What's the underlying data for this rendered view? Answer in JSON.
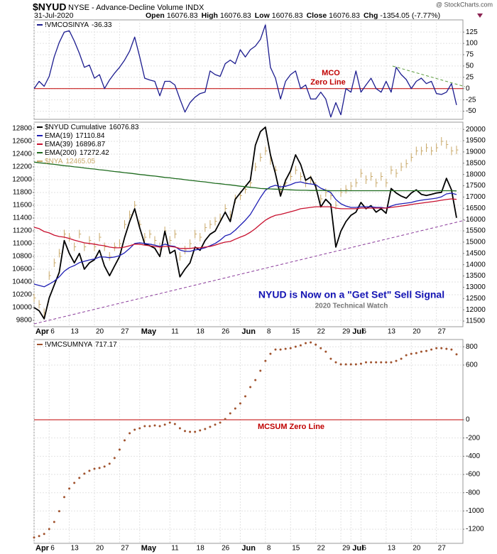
{
  "header": {
    "symbol": "$NYUD",
    "description": "NYSE - Advance-Decline Volume INDX",
    "source": "@ StockCharts.com",
    "date": "31-Jul-2020",
    "quote": [
      {
        "label": "Open",
        "value": 16076.83
      },
      {
        "label": "High",
        "value": 16076.83
      },
      {
        "label": "Low",
        "value": 16076.83
      },
      {
        "label": "Close",
        "value": 16076.83
      },
      {
        "label": "Chg",
        "value": -1354.05,
        "change_pct": "(-7.77%)"
      }
    ]
  },
  "chart_data": [
    {
      "type": "line",
      "yaxis": "right",
      "grid": true,
      "zero_line": "#c00000",
      "ylim": [
        -68,
        152
      ],
      "yticks": [
        125,
        100,
        75,
        50,
        25,
        0,
        -25,
        -50
      ],
      "annotations": [
        "MCO",
        "Zero Line"
      ],
      "series": [
        {
          "name": "!VMCOSINYA",
          "color": "#1c1c8f",
          "style": "line",
          "values": [
            0,
            16,
            5,
            27,
            70,
            102,
            125,
            128,
            105,
            78,
            47,
            52,
            23,
            31,
            0,
            19,
            34,
            47,
            63,
            83,
            114,
            70,
            23,
            19,
            16,
            -16,
            16,
            16,
            8,
            -23,
            -52,
            -31,
            -19,
            -11,
            -8,
            39,
            31,
            27,
            55,
            63,
            55,
            86,
            70,
            86,
            94,
            109,
            141,
            47,
            23,
            -23,
            16,
            31,
            39,
            0,
            8,
            -23,
            -23,
            -8,
            -23,
            -63,
            -31,
            -58,
            0,
            -8,
            39,
            -8,
            8,
            23,
            0,
            -8,
            16,
            -8,
            47,
            31,
            20,
            0,
            16,
            23,
            11,
            16,
            -11,
            -13,
            -8,
            11,
            -36.33
          ]
        }
      ]
    },
    {
      "type": "line",
      "yaxis": "left",
      "grid": true,
      "ylim": [
        9700,
        12900
      ],
      "yticks": [
        12800,
        12600,
        12400,
        12200,
        12000,
        11800,
        11600,
        11400,
        11200,
        11000,
        10800,
        10600,
        10400,
        10200,
        10000,
        9800
      ],
      "y2lim": [
        11250,
        20320
      ],
      "y2ticks": [
        20000,
        19500,
        19000,
        18500,
        18000,
        17500,
        17000,
        16500,
        16000,
        15500,
        15000,
        14500,
        14000,
        13500,
        13000,
        12500,
        12000,
        11500
      ],
      "annotations": [
        "NYUD is Now on a \"Get Set\" Sell Signal",
        "2020 Technical Watch"
      ],
      "categories": [
        "Apr",
        null,
        null,
        "6",
        null,
        null,
        null,
        "13",
        null,
        null,
        null,
        null,
        "20",
        null,
        null,
        null,
        null,
        "27",
        null,
        null,
        null,
        "May",
        null,
        null,
        null,
        null,
        null,
        "11",
        null,
        null,
        null,
        null,
        "18",
        null,
        null,
        null,
        null,
        "26",
        null,
        null,
        null,
        "Jun",
        null,
        null,
        null,
        null,
        "8",
        null,
        null,
        null,
        null,
        "15",
        null,
        null,
        null,
        null,
        "22",
        null,
        null,
        null,
        null,
        "29",
        null,
        "Jul",
        null,
        "6",
        null,
        null,
        null,
        null,
        "13",
        null,
        null,
        null,
        null,
        "20",
        null,
        null,
        null,
        null,
        "27",
        null,
        null,
        null,
        null
      ],
      "series": [
        {
          "name": "$NYUD Cumulative",
          "color": "#000000",
          "style": "line",
          "axis": "y2",
          "values": [
            12100,
            11960,
            11600,
            12530,
            13090,
            13660,
            15070,
            14500,
            14080,
            14500,
            13800,
            14080,
            14220,
            14640,
            13940,
            13510,
            13940,
            14360,
            15210,
            15910,
            16480,
            15630,
            14920,
            14840,
            14730,
            14360,
            15490,
            14500,
            14640,
            13460,
            13800,
            14080,
            14780,
            14640,
            15070,
            15350,
            15490,
            15910,
            16330,
            15910,
            16900,
            17180,
            17460,
            17740,
            19300,
            19900,
            20100,
            18870,
            18030,
            17040,
            17740,
            18170,
            18870,
            18450,
            17740,
            17890,
            17460,
            16560,
            16900,
            16670,
            14780,
            15490,
            15910,
            16190,
            16330,
            16760,
            16480,
            16620,
            16330,
            16480,
            16280,
            17380,
            17180,
            17040,
            16950,
            17180,
            17320,
            17120,
            17070,
            17120,
            17180,
            17210,
            17830,
            17320,
            16076.83
          ]
        },
        {
          "name": "EMA(19)",
          "color": "#1f1fb4",
          "style": "line",
          "axis": "y2",
          "values": [
            13140,
            13080,
            13020,
            13140,
            13270,
            13460,
            13710,
            13870,
            13960,
            14090,
            14150,
            14210,
            14250,
            14340,
            14340,
            14310,
            14340,
            14400,
            14530,
            14720,
            14940,
            14970,
            14940,
            14910,
            14870,
            14810,
            14910,
            14840,
            14810,
            14650,
            14590,
            14590,
            14650,
            14690,
            14750,
            14840,
            14940,
            15090,
            15280,
            15350,
            15530,
            15750,
            15970,
            16230,
            16600,
            16980,
            17300,
            17450,
            17520,
            17450,
            17480,
            17550,
            17640,
            17670,
            17610,
            17580,
            17550,
            17390,
            17300,
            17200,
            16890,
            16700,
            16600,
            16540,
            16540,
            16570,
            16570,
            16570,
            16540,
            16540,
            16510,
            16600,
            16670,
            16700,
            16730,
            16760,
            16820,
            16860,
            16890,
            16920,
            16950,
            17010,
            17140,
            17170,
            17110.84
          ]
        },
        {
          "name": "EMA(39)",
          "color": "#c8102e",
          "style": "line",
          "axis": "y2",
          "values": [
            15660,
            15600,
            15470,
            15410,
            15310,
            15250,
            15220,
            15160,
            15090,
            15030,
            14970,
            14940,
            14910,
            14870,
            14840,
            14780,
            14750,
            14750,
            14780,
            14840,
            14910,
            14910,
            14870,
            14840,
            14810,
            14780,
            14810,
            14810,
            14780,
            14720,
            14720,
            14720,
            14750,
            14750,
            14780,
            14810,
            14870,
            14940,
            15000,
            15030,
            15130,
            15220,
            15310,
            15440,
            15600,
            15790,
            15970,
            16100,
            16190,
            16230,
            16290,
            16350,
            16410,
            16480,
            16510,
            16540,
            16570,
            16570,
            16570,
            16570,
            16510,
            16480,
            16480,
            16480,
            16480,
            16510,
            16510,
            16510,
            16510,
            16510,
            16510,
            16540,
            16570,
            16600,
            16630,
            16670,
            16700,
            16730,
            16760,
            16790,
            16820,
            16860,
            16890,
            16920,
            16896.87
          ]
        },
        {
          "name": "EMA(200)",
          "color": "#1e6b1e",
          "style": "line",
          "axis": "y2",
          "values": [
            18550,
            18520,
            18500,
            18470,
            18450,
            18420,
            18390,
            18370,
            18340,
            18320,
            18290,
            18260,
            18240,
            18210,
            18190,
            18160,
            18130,
            18110,
            18080,
            18060,
            18030,
            18000,
            17980,
            17950,
            17930,
            17900,
            17870,
            17850,
            17820,
            17800,
            17770,
            17740,
            17720,
            17690,
            17670,
            17640,
            17610,
            17590,
            17560,
            17540,
            17510,
            17480,
            17460,
            17430,
            17410,
            17380,
            17370,
            17360,
            17350,
            17340,
            17330,
            17320,
            17310,
            17300,
            17300,
            17290,
            17290,
            17290,
            17290,
            17280,
            17280,
            17280,
            17280,
            17280,
            17280,
            17280,
            17280,
            17280,
            17280,
            17280,
            17280,
            17280,
            17280,
            17280,
            17280,
            17280,
            17280,
            17280,
            17280,
            17280,
            17280,
            17280,
            17280,
            17280,
            17272.42
          ]
        },
        {
          "name": "$NYA",
          "color": "#c9a96a",
          "style": "bars",
          "values": [
            10150,
            10050,
            9920,
            10500,
            10700,
            10850,
            11150,
            11100,
            10950,
            11150,
            10950,
            11050,
            10950,
            11100,
            10950,
            10800,
            10950,
            11000,
            11300,
            11450,
            11600,
            11300,
            11100,
            11150,
            11050,
            10950,
            11200,
            11050,
            11150,
            10800,
            10900,
            11000,
            11150,
            11100,
            11250,
            11300,
            11350,
            11400,
            11550,
            11450,
            11700,
            11750,
            11850,
            11950,
            12200,
            12350,
            12450,
            12300,
            12150,
            11850,
            11950,
            12050,
            12150,
            12050,
            11950,
            12000,
            11900,
            11700,
            11800,
            11750,
            11600,
            11800,
            11850,
            11900,
            11950,
            12100,
            12000,
            12050,
            11950,
            12050,
            11950,
            12150,
            12100,
            12200,
            12250,
            12350,
            12450,
            12450,
            12500,
            12450,
            12500,
            12600,
            12550,
            12450,
            12465.05
          ]
        }
      ]
    },
    {
      "type": "line",
      "yaxis": "right",
      "grid": true,
      "zero_line": "#c00000",
      "ylim": [
        -1355,
        880
      ],
      "yticks": [
        800,
        600,
        0,
        -200,
        -400,
        -600,
        -800,
        -1000,
        -1200
      ],
      "annotations": [
        "MCSUM Zero Line"
      ],
      "categories": [
        "Apr",
        null,
        null,
        "6",
        null,
        null,
        null,
        "13",
        null,
        null,
        null,
        null,
        "20",
        null,
        null,
        null,
        null,
        "27",
        null,
        null,
        null,
        "May",
        null,
        null,
        null,
        null,
        null,
        "11",
        null,
        null,
        null,
        null,
        "18",
        null,
        null,
        null,
        null,
        "26",
        null,
        null,
        null,
        "Jun",
        null,
        null,
        null,
        null,
        "8",
        null,
        null,
        null,
        null,
        "15",
        null,
        null,
        null,
        null,
        "22",
        null,
        null,
        null,
        null,
        "29",
        null,
        "Jul",
        null,
        "6",
        null,
        null,
        null,
        null,
        "13",
        null,
        null,
        null,
        null,
        "20",
        null,
        null,
        null,
        null,
        "27",
        null,
        null,
        null,
        null
      ],
      "series": [
        {
          "name": "!VMCSUMNYA",
          "color": "#a0522d",
          "style": "dots",
          "values": [
            -1291,
            -1275,
            -1252,
            -1198,
            -1120,
            -1003,
            -848,
            -754,
            -692,
            -638,
            -591,
            -560,
            -537,
            -529,
            -513,
            -482,
            -420,
            -327,
            -226,
            -148,
            -109,
            -93,
            -70,
            -70,
            -62,
            -70,
            -54,
            -31,
            -47,
            -93,
            -124,
            -132,
            -132,
            -117,
            -101,
            -78,
            -54,
            -31,
            8,
            70,
            124,
            179,
            257,
            358,
            435,
            537,
            645,
            723,
            770,
            770,
            778,
            785,
            801,
            816,
            840,
            848,
            824,
            785,
            747,
            669,
            630,
            607,
            607,
            607,
            607,
            614,
            630,
            630,
            630,
            630,
            630,
            630,
            645,
            669,
            708,
            723,
            731,
            747,
            754,
            770,
            785,
            785,
            778,
            770,
            717.17
          ]
        }
      ]
    }
  ]
}
